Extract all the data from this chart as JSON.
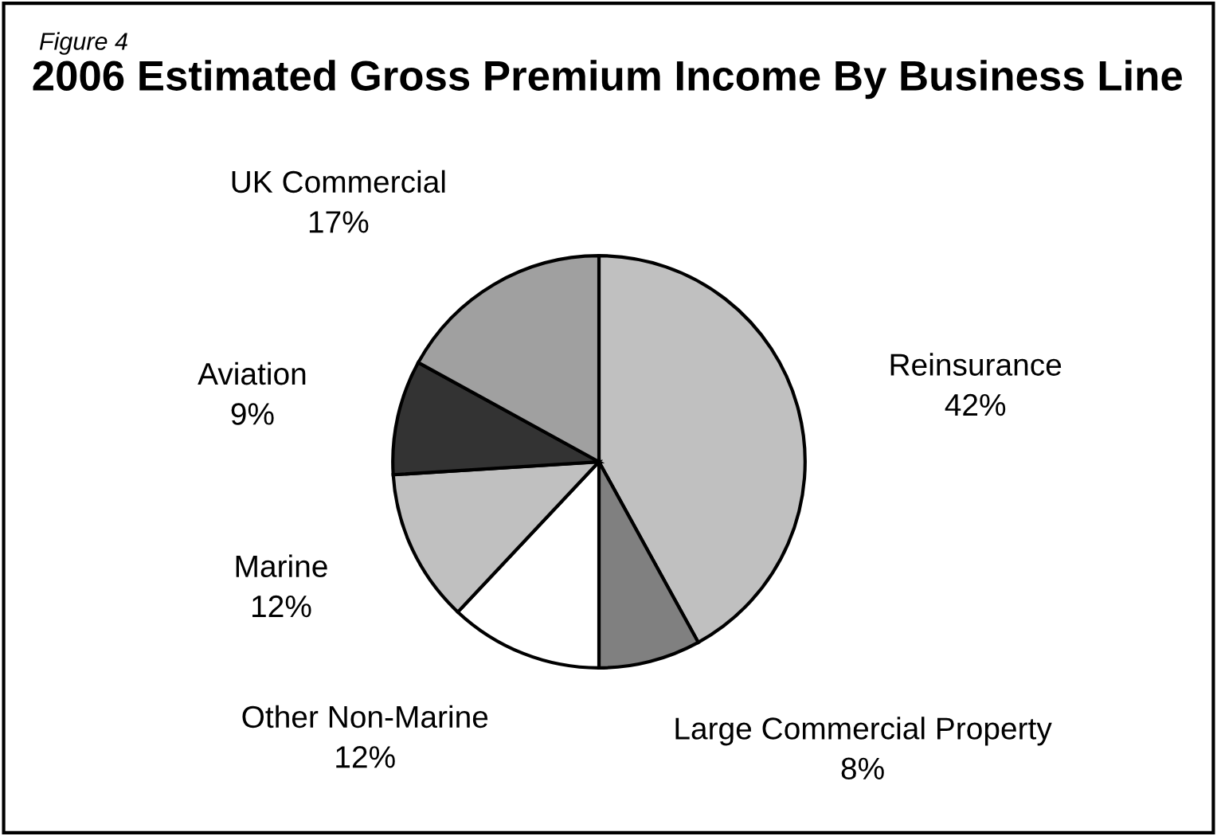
{
  "chart_data": {
    "type": "pie",
    "title": "2006 Estimated Gross Premium Income By Business Line",
    "annotations": [
      "Figure 4"
    ],
    "categories": [
      "Reinsurance",
      "Large Commercial Property",
      "Other Non-Marine",
      "Marine",
      "Aviation",
      "UK Commercial"
    ],
    "values": [
      42,
      8,
      12,
      12,
      9,
      17
    ],
    "colors": [
      "#c0c0c0",
      "#808080",
      "#ffffff",
      "#c0c0c0",
      "#333333",
      "#a0a0a0"
    ],
    "value_labels": [
      "42%",
      "8%",
      "12%",
      "12%",
      "9%",
      "17%"
    ],
    "legend": false
  }
}
